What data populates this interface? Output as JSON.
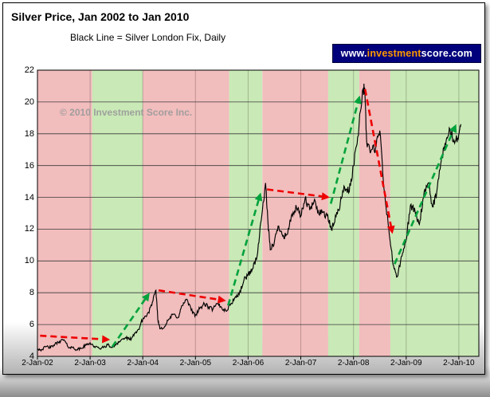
{
  "header": {
    "title": "Silver Price, Jan 2002 to Jan 2010",
    "subtitle": "Black Line = Silver London Fix, Daily",
    "banner": {
      "prefix": "www.",
      "highlight": "investment",
      "suffix": "score.com"
    }
  },
  "watermark": "© 2010 Investment Score Inc.",
  "colors": {
    "band_red": "#f2bdbd",
    "band_green": "#c9e9b6",
    "grid": "#3a3a3a",
    "grid_vertical": "rgba(0,0,0,0.22)",
    "price_line": "#000000",
    "arrow_red": "#ee0000",
    "arrow_green": "#00a23c",
    "plot_border": "#000000",
    "banner_bg": "#00007d",
    "banner_text": "#ffffff",
    "banner_highlight": "#ff9900",
    "watermark": "#9a9a9a"
  },
  "chart_data": {
    "type": "line",
    "title": "Silver Price, Jan 2002 to Jan 2010",
    "series_name": "Silver London Fix, Daily",
    "x_unit": "decimal_year",
    "xlim": [
      2002.0,
      2010.38
    ],
    "ylim": [
      4,
      22
    ],
    "y_ticks": [
      22,
      20,
      18,
      16,
      14,
      12,
      10,
      8,
      6,
      4
    ],
    "x_ticks": [
      {
        "t": 2002.0,
        "label": "2-Jan-02"
      },
      {
        "t": 2003.0,
        "label": "2-Jan-03"
      },
      {
        "t": 2004.0,
        "label": "2-Jan-04"
      },
      {
        "t": 2005.0,
        "label": "2-Jan-05"
      },
      {
        "t": 2006.0,
        "label": "2-Jan-06"
      },
      {
        "t": 2007.0,
        "label": "2-Jan-07"
      },
      {
        "t": 2008.0,
        "label": "2-Jan-08"
      },
      {
        "t": 2009.0,
        "label": "2-Jan-09"
      },
      {
        "t": 2010.0,
        "label": "2-Jan-10"
      }
    ],
    "bands": [
      {
        "from": 2002.0,
        "to": 2003.04,
        "color": "red"
      },
      {
        "from": 2003.04,
        "to": 2004.0,
        "color": "green"
      },
      {
        "from": 2004.0,
        "to": 2005.64,
        "color": "red"
      },
      {
        "from": 2005.64,
        "to": 2006.27,
        "color": "green"
      },
      {
        "from": 2006.27,
        "to": 2007.52,
        "color": "red"
      },
      {
        "from": 2007.52,
        "to": 2008.11,
        "color": "green"
      },
      {
        "from": 2008.11,
        "to": 2008.7,
        "color": "red"
      },
      {
        "from": 2008.7,
        "to": 2010.38,
        "color": "green"
      }
    ],
    "arrows": [
      {
        "color": "red",
        "from": [
          2002.05,
          5.3
        ],
        "to": [
          2003.38,
          5.05
        ]
      },
      {
        "color": "green",
        "from": [
          2003.42,
          4.6
        ],
        "to": [
          2004.13,
          8.0
        ]
      },
      {
        "color": "red",
        "from": [
          2004.3,
          8.15
        ],
        "to": [
          2005.58,
          7.5
        ]
      },
      {
        "color": "green",
        "from": [
          2005.62,
          7.2
        ],
        "to": [
          2006.24,
          14.3
        ]
      },
      {
        "color": "red",
        "from": [
          2006.36,
          14.5
        ],
        "to": [
          2007.55,
          14.0
        ]
      },
      {
        "color": "green",
        "from": [
          2007.57,
          13.6
        ],
        "to": [
          2008.12,
          20.4
        ]
      },
      {
        "color": "red",
        "from": [
          2008.22,
          20.8
        ],
        "to": [
          2008.74,
          11.7
        ]
      },
      {
        "color": "green",
        "from": [
          2008.78,
          9.8
        ],
        "to": [
          2009.95,
          18.6
        ]
      }
    ],
    "points": [
      [
        2002.0,
        4.48
      ],
      [
        2002.08,
        4.42
      ],
      [
        2002.17,
        4.62
      ],
      [
        2002.25,
        4.55
      ],
      [
        2002.33,
        4.75
      ],
      [
        2002.42,
        4.95
      ],
      [
        2002.5,
        5.05
      ],
      [
        2002.58,
        4.6
      ],
      [
        2002.67,
        4.55
      ],
      [
        2002.75,
        4.42
      ],
      [
        2002.83,
        4.5
      ],
      [
        2002.92,
        4.7
      ],
      [
        2003.0,
        4.85
      ],
      [
        2003.08,
        4.62
      ],
      [
        2003.17,
        4.5
      ],
      [
        2003.25,
        4.55
      ],
      [
        2003.33,
        4.72
      ],
      [
        2003.42,
        4.55
      ],
      [
        2003.5,
        4.8
      ],
      [
        2003.58,
        5.0
      ],
      [
        2003.67,
        5.18
      ],
      [
        2003.75,
        5.05
      ],
      [
        2003.83,
        5.3
      ],
      [
        2003.92,
        5.7
      ],
      [
        2004.0,
        6.35
      ],
      [
        2004.08,
        6.6
      ],
      [
        2004.17,
        7.2
      ],
      [
        2004.25,
        8.15
      ],
      [
        2004.29,
        6.2
      ],
      [
        2004.33,
        5.75
      ],
      [
        2004.42,
        5.9
      ],
      [
        2004.5,
        6.35
      ],
      [
        2004.58,
        6.65
      ],
      [
        2004.67,
        6.45
      ],
      [
        2004.75,
        7.2
      ],
      [
        2004.83,
        7.6
      ],
      [
        2004.92,
        6.9
      ],
      [
        2005.0,
        6.6
      ],
      [
        2005.08,
        7.0
      ],
      [
        2005.17,
        7.3
      ],
      [
        2005.25,
        7.1
      ],
      [
        2005.33,
        6.95
      ],
      [
        2005.42,
        7.3
      ],
      [
        2005.5,
        7.05
      ],
      [
        2005.58,
        6.85
      ],
      [
        2005.67,
        7.3
      ],
      [
        2005.75,
        7.7
      ],
      [
        2005.83,
        7.9
      ],
      [
        2005.92,
        8.8
      ],
      [
        2006.0,
        9.15
      ],
      [
        2006.08,
        9.5
      ],
      [
        2006.17,
        10.3
      ],
      [
        2006.25,
        12.6
      ],
      [
        2006.33,
        14.9
      ],
      [
        2006.38,
        12.2
      ],
      [
        2006.42,
        10.7
      ],
      [
        2006.5,
        11.25
      ],
      [
        2006.58,
        12.2
      ],
      [
        2006.67,
        11.6
      ],
      [
        2006.75,
        11.7
      ],
      [
        2006.83,
        12.95
      ],
      [
        2006.92,
        13.3
      ],
      [
        2007.0,
        12.8
      ],
      [
        2007.08,
        13.9
      ],
      [
        2007.17,
        13.2
      ],
      [
        2007.25,
        13.75
      ],
      [
        2007.33,
        13.15
      ],
      [
        2007.42,
        13.05
      ],
      [
        2007.5,
        12.85
      ],
      [
        2007.58,
        11.95
      ],
      [
        2007.67,
        12.8
      ],
      [
        2007.75,
        13.65
      ],
      [
        2007.83,
        14.65
      ],
      [
        2007.92,
        14.35
      ],
      [
        2008.0,
        16.0
      ],
      [
        2008.08,
        17.8
      ],
      [
        2008.17,
        20.7
      ],
      [
        2008.21,
        20.9
      ],
      [
        2008.25,
        17.5
      ],
      [
        2008.33,
        16.9
      ],
      [
        2008.42,
        17.1
      ],
      [
        2008.5,
        18.2
      ],
      [
        2008.58,
        14.5
      ],
      [
        2008.67,
        12.0
      ],
      [
        2008.75,
        9.8
      ],
      [
        2008.83,
        9.0
      ],
      [
        2008.92,
        10.3
      ],
      [
        2009.0,
        11.3
      ],
      [
        2009.08,
        13.5
      ],
      [
        2009.17,
        13.1
      ],
      [
        2009.25,
        12.3
      ],
      [
        2009.33,
        14.0
      ],
      [
        2009.42,
        14.9
      ],
      [
        2009.5,
        13.4
      ],
      [
        2009.58,
        14.3
      ],
      [
        2009.67,
        16.4
      ],
      [
        2009.75,
        17.3
      ],
      [
        2009.83,
        18.3
      ],
      [
        2009.92,
        17.4
      ],
      [
        2010.0,
        18.0
      ],
      [
        2010.04,
        18.6
      ]
    ]
  }
}
